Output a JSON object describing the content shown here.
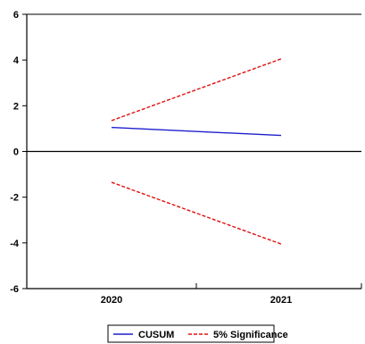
{
  "chart_data": {
    "type": "line",
    "title": "",
    "xlabel": "",
    "ylabel": "",
    "x": [
      "2020",
      "2021"
    ],
    "ylim": [
      -6,
      6
    ],
    "yticks": [
      6,
      4,
      2,
      0,
      -2,
      -4,
      -6
    ],
    "grid": false,
    "zero_line": true,
    "legend_position": "bottom-center",
    "series": [
      {
        "name": "CUSUM",
        "values": [
          1.05,
          0.7
        ],
        "color": "#1f1fcc",
        "style": "solid"
      },
      {
        "name": "5% Significance",
        "values": [
          1.35,
          4.05
        ],
        "color": "#e01010",
        "style": "dashed"
      },
      {
        "name": "",
        "values": [
          -1.35,
          -4.05
        ],
        "color": "#e01010",
        "style": "dashed"
      }
    ]
  }
}
